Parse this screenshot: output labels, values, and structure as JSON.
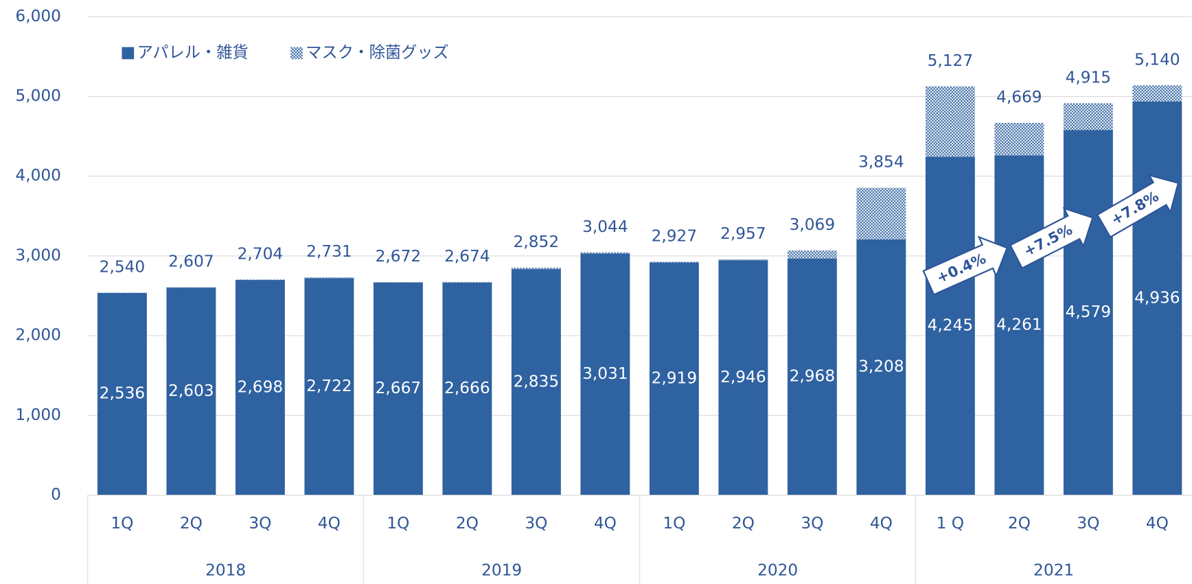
{
  "chart_data": {
    "type": "bar",
    "stacked": true,
    "legend": "top-left",
    "categories": [
      "1Q",
      "2Q",
      "3Q",
      "4Q",
      "1Q",
      "2Q",
      "3Q",
      "4Q",
      "1Q",
      "2Q",
      "3Q",
      "4Q",
      "1 Q",
      "2Q",
      "3Q",
      "4Q"
    ],
    "groups": [
      "2018",
      "2019",
      "2020",
      "2021"
    ],
    "series": [
      {
        "name": "アパレル・雑貨",
        "color": "#2f62a1",
        "values": [
          2536,
          2603,
          2698,
          2722,
          2667,
          2666,
          2835,
          3031,
          2919,
          2946,
          2968,
          3208,
          4245,
          4261,
          4579,
          4936
        ],
        "value_labels": [
          "2,536",
          "2,603",
          "2,698",
          "2,722",
          "2,667",
          "2,666",
          "2,835",
          "3,031",
          "2,919",
          "2,946",
          "2,968",
          "3,208",
          "4,245",
          "4,261",
          "4,579",
          "4,936"
        ]
      },
      {
        "name": "マスク・除菌グッズ",
        "color": "#2f62a1",
        "pattern": "checker",
        "values": [
          4,
          4,
          6,
          9,
          5,
          8,
          17,
          13,
          8,
          11,
          101,
          646,
          882,
          408,
          336,
          204
        ]
      }
    ],
    "total_labels": [
      "2,540",
      "2,607",
      "2,704",
      "2,731",
      "2,672",
      "2,674",
      "2,852",
      "3,044",
      "2,927",
      "2,957",
      "3,069",
      "3,854",
      "5,127",
      "4,669",
      "4,915",
      "5,140"
    ],
    "annotations": [
      "+0.4%",
      "+7.5%",
      "+7.8%"
    ],
    "ylim": [
      0,
      6000
    ],
    "yticks": [
      0,
      {
        "value": 1000,
        "label": "1,000"
      },
      {
        "value": 2000,
        "label": "2,000"
      },
      {
        "value": 3000,
        "label": "3,000"
      },
      {
        "value": 4000,
        "label": "4,000"
      },
      {
        "value": 5000,
        "label": "5,000"
      },
      {
        "value": 6000,
        "label": "6,000"
      }
    ],
    "grid": true
  }
}
